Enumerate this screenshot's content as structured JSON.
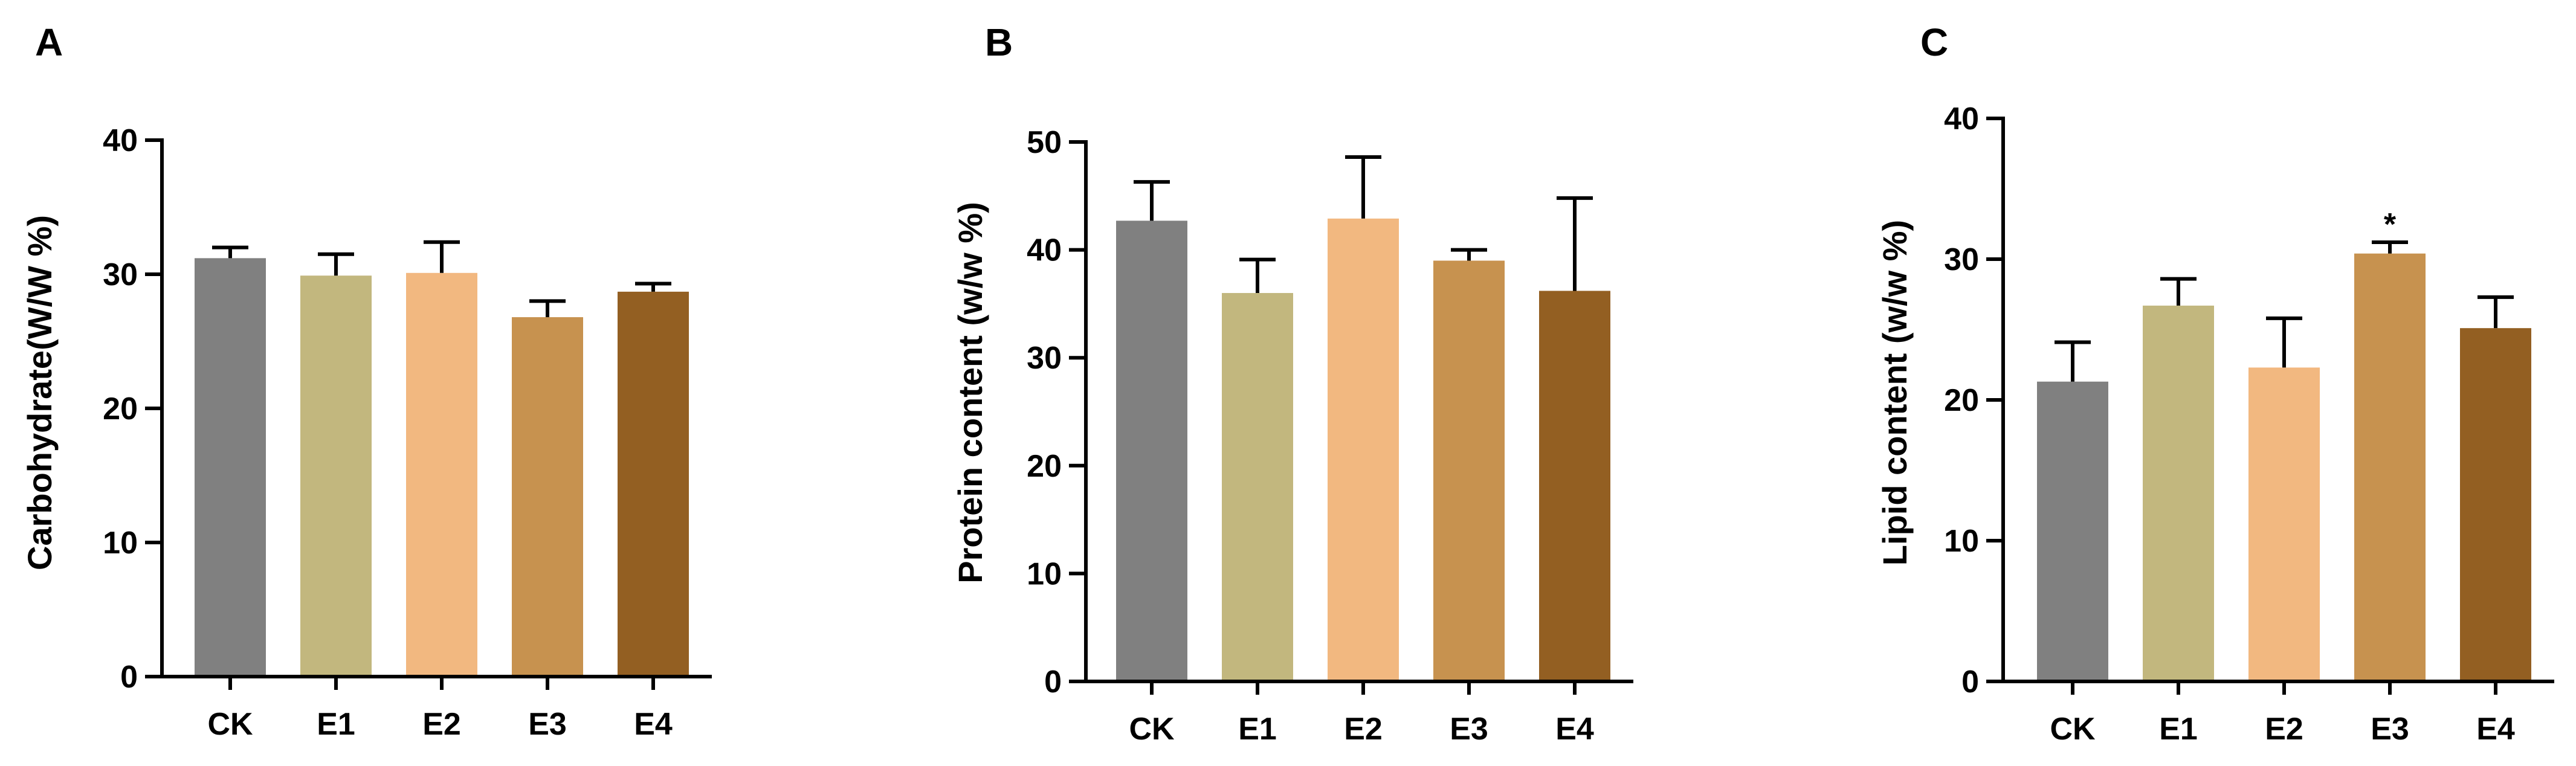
{
  "colors": {
    "CK": "#808080",
    "E1": "#c2b77e",
    "E2": "#f2b880",
    "E3": "#c7924f",
    "E4": "#935f22",
    "axis": "#000000",
    "error_bar": "#000000"
  },
  "chart_data": [
    {
      "panel": "A",
      "type": "bar",
      "categories": [
        "CK",
        "E1",
        "E2",
        "E3",
        "E4"
      ],
      "values": [
        31.2,
        29.9,
        30.1,
        26.8,
        28.7
      ],
      "errors": [
        0.8,
        1.6,
        2.3,
        1.2,
        0.6
      ],
      "significance": [
        "",
        "",
        "",
        "",
        ""
      ],
      "ylabel": "Carbohydrate(W/W %)",
      "xlabel": "",
      "ylim": [
        0,
        40
      ],
      "yticks": [
        0,
        10,
        20,
        30,
        40
      ]
    },
    {
      "panel": "B",
      "type": "bar",
      "categories": [
        "CK",
        "E1",
        "E2",
        "E3",
        "E4"
      ],
      "values": [
        42.7,
        36.0,
        42.9,
        39.0,
        36.2
      ],
      "errors": [
        3.6,
        3.1,
        5.7,
        1.0,
        8.6
      ],
      "significance": [
        "",
        "",
        "",
        "",
        ""
      ],
      "ylabel": "Protein content (w/w %)",
      "xlabel": "",
      "ylim": [
        0,
        50
      ],
      "yticks": [
        0,
        10,
        20,
        30,
        40,
        50
      ]
    },
    {
      "panel": "C",
      "type": "bar",
      "categories": [
        "CK",
        "E1",
        "E2",
        "E3",
        "E4"
      ],
      "values": [
        21.3,
        26.7,
        22.3,
        30.4,
        25.1
      ],
      "errors": [
        2.8,
        1.9,
        3.5,
        0.8,
        2.2
      ],
      "significance": [
        "",
        "",
        "",
        "*",
        ""
      ],
      "ylabel": "Lipid content (w/w %)",
      "xlabel": "",
      "ylim": [
        0,
        40
      ],
      "yticks": [
        0,
        10,
        20,
        30,
        40
      ]
    }
  ]
}
